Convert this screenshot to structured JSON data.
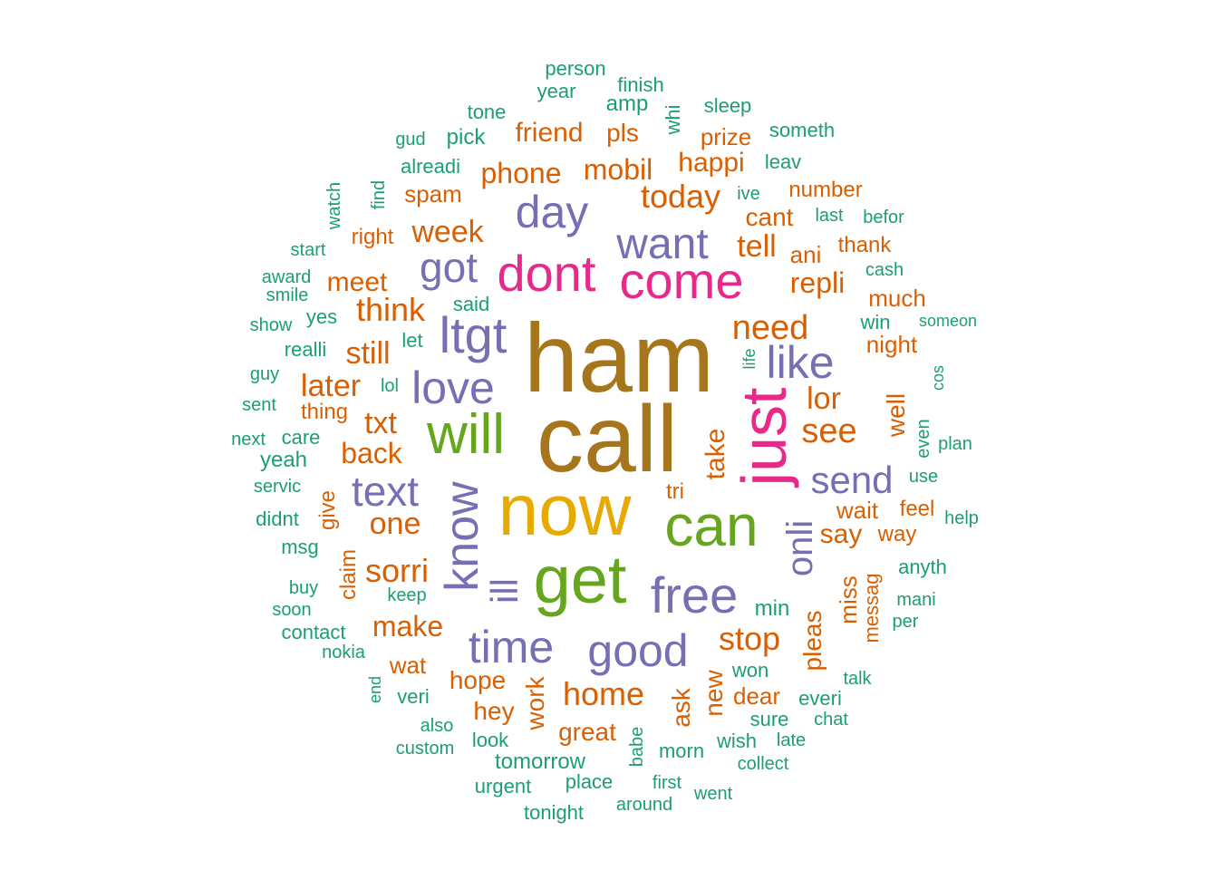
{
  "colors": {
    "teal": "#1b9e77",
    "orange": "#d95f02",
    "purple": "#7570b3",
    "pink": "#e7298a",
    "green": "#66a61e",
    "gold": "#e6ab02",
    "brown": "#a6761d"
  },
  "words": [
    {
      "text": "ham",
      "color": "brown"
    },
    {
      "text": "call",
      "color": "brown"
    },
    {
      "text": "now",
      "color": "gold"
    },
    {
      "text": "get",
      "color": "green"
    },
    {
      "text": "can",
      "color": "green"
    },
    {
      "text": "will",
      "color": "green"
    },
    {
      "text": "just",
      "color": "pink"
    },
    {
      "text": "dont",
      "color": "pink"
    },
    {
      "text": "come",
      "color": "pink"
    },
    {
      "text": "ltgt",
      "color": "purple"
    },
    {
      "text": "free",
      "color": "purple"
    },
    {
      "text": "know",
      "color": "purple"
    },
    {
      "text": "got",
      "color": "purple"
    },
    {
      "text": "day",
      "color": "purple"
    },
    {
      "text": "want",
      "color": "purple"
    },
    {
      "text": "like",
      "color": "purple"
    },
    {
      "text": "love",
      "color": "purple"
    },
    {
      "text": "time",
      "color": "purple"
    },
    {
      "text": "good",
      "color": "purple"
    },
    {
      "text": "text",
      "color": "purple"
    },
    {
      "text": "send",
      "color": "purple"
    },
    {
      "text": "ill",
      "color": "purple"
    },
    {
      "text": "onli",
      "color": "purple"
    },
    {
      "text": "need",
      "color": "orange"
    },
    {
      "text": "today",
      "color": "orange"
    },
    {
      "text": "think",
      "color": "orange"
    },
    {
      "text": "still",
      "color": "orange"
    },
    {
      "text": "later",
      "color": "orange"
    },
    {
      "text": "txt",
      "color": "orange"
    },
    {
      "text": "back",
      "color": "orange"
    },
    {
      "text": "one",
      "color": "orange"
    },
    {
      "text": "sorri",
      "color": "orange"
    },
    {
      "text": "make",
      "color": "orange"
    },
    {
      "text": "home",
      "color": "orange"
    },
    {
      "text": "stop",
      "color": "orange"
    },
    {
      "text": "take",
      "color": "orange"
    },
    {
      "text": "tell",
      "color": "orange"
    },
    {
      "text": "repli",
      "color": "orange"
    },
    {
      "text": "see",
      "color": "orange"
    },
    {
      "text": "lor",
      "color": "orange"
    },
    {
      "text": "week",
      "color": "orange"
    },
    {
      "text": "meet",
      "color": "orange"
    },
    {
      "text": "phone",
      "color": "orange"
    },
    {
      "text": "mobil",
      "color": "orange"
    },
    {
      "text": "happi",
      "color": "orange"
    },
    {
      "text": "friend",
      "color": "orange"
    },
    {
      "text": "pls",
      "color": "orange"
    },
    {
      "text": "prize",
      "color": "orange"
    },
    {
      "text": "spam",
      "color": "orange"
    },
    {
      "text": "number",
      "color": "orange"
    },
    {
      "text": "cant",
      "color": "orange"
    },
    {
      "text": "ani",
      "color": "orange"
    },
    {
      "text": "thank",
      "color": "orange"
    },
    {
      "text": "much",
      "color": "orange"
    },
    {
      "text": "night",
      "color": "orange"
    },
    {
      "text": "well",
      "color": "orange"
    },
    {
      "text": "say",
      "color": "orange"
    },
    {
      "text": "way",
      "color": "orange"
    },
    {
      "text": "wait",
      "color": "orange"
    },
    {
      "text": "feel",
      "color": "orange"
    },
    {
      "text": "miss",
      "color": "orange"
    },
    {
      "text": "messag",
      "color": "orange"
    },
    {
      "text": "pleas",
      "color": "orange"
    },
    {
      "text": "hope",
      "color": "orange"
    },
    {
      "text": "hey",
      "color": "orange"
    },
    {
      "text": "work",
      "color": "orange"
    },
    {
      "text": "great",
      "color": "orange"
    },
    {
      "text": "ask",
      "color": "orange"
    },
    {
      "text": "new",
      "color": "orange"
    },
    {
      "text": "dear",
      "color": "orange"
    },
    {
      "text": "wat",
      "color": "orange"
    },
    {
      "text": "claim",
      "color": "orange"
    },
    {
      "text": "give",
      "color": "orange"
    },
    {
      "text": "thing",
      "color": "orange"
    },
    {
      "text": "right",
      "color": "orange"
    },
    {
      "text": "tri",
      "color": "orange"
    },
    {
      "text": "person",
      "color": "teal"
    },
    {
      "text": "year",
      "color": "teal"
    },
    {
      "text": "finish",
      "color": "teal"
    },
    {
      "text": "amp",
      "color": "teal"
    },
    {
      "text": "whi",
      "color": "teal"
    },
    {
      "text": "sleep",
      "color": "teal"
    },
    {
      "text": "tone",
      "color": "teal"
    },
    {
      "text": "gud",
      "color": "teal"
    },
    {
      "text": "pick",
      "color": "teal"
    },
    {
      "text": "someth",
      "color": "teal"
    },
    {
      "text": "alreadi",
      "color": "teal"
    },
    {
      "text": "leav",
      "color": "teal"
    },
    {
      "text": "watch",
      "color": "teal"
    },
    {
      "text": "find",
      "color": "teal"
    },
    {
      "text": "ive",
      "color": "teal"
    },
    {
      "text": "last",
      "color": "teal"
    },
    {
      "text": "befor",
      "color": "teal"
    },
    {
      "text": "start",
      "color": "teal"
    },
    {
      "text": "award",
      "color": "teal"
    },
    {
      "text": "smile",
      "color": "teal"
    },
    {
      "text": "cash",
      "color": "teal"
    },
    {
      "text": "show",
      "color": "teal"
    },
    {
      "text": "yes",
      "color": "teal"
    },
    {
      "text": "said",
      "color": "teal"
    },
    {
      "text": "win",
      "color": "teal"
    },
    {
      "text": "someon",
      "color": "teal"
    },
    {
      "text": "realli",
      "color": "teal"
    },
    {
      "text": "let",
      "color": "teal"
    },
    {
      "text": "guy",
      "color": "teal"
    },
    {
      "text": "life",
      "color": "teal"
    },
    {
      "text": "cos",
      "color": "teal"
    },
    {
      "text": "sent",
      "color": "teal"
    },
    {
      "text": "lol",
      "color": "teal"
    },
    {
      "text": "next",
      "color": "teal"
    },
    {
      "text": "care",
      "color": "teal"
    },
    {
      "text": "even",
      "color": "teal"
    },
    {
      "text": "plan",
      "color": "teal"
    },
    {
      "text": "yeah",
      "color": "teal"
    },
    {
      "text": "servic",
      "color": "teal"
    },
    {
      "text": "use",
      "color": "teal"
    },
    {
      "text": "didnt",
      "color": "teal"
    },
    {
      "text": "help",
      "color": "teal"
    },
    {
      "text": "msg",
      "color": "teal"
    },
    {
      "text": "anyth",
      "color": "teal"
    },
    {
      "text": "buy",
      "color": "teal"
    },
    {
      "text": "keep",
      "color": "teal"
    },
    {
      "text": "soon",
      "color": "teal"
    },
    {
      "text": "min",
      "color": "teal"
    },
    {
      "text": "mani",
      "color": "teal"
    },
    {
      "text": "contact",
      "color": "teal"
    },
    {
      "text": "per",
      "color": "teal"
    },
    {
      "text": "nokia",
      "color": "teal"
    },
    {
      "text": "end",
      "color": "teal"
    },
    {
      "text": "won",
      "color": "teal"
    },
    {
      "text": "talk",
      "color": "teal"
    },
    {
      "text": "veri",
      "color": "teal"
    },
    {
      "text": "everi",
      "color": "teal"
    },
    {
      "text": "also",
      "color": "teal"
    },
    {
      "text": "babe",
      "color": "teal"
    },
    {
      "text": "sure",
      "color": "teal"
    },
    {
      "text": "chat",
      "color": "teal"
    },
    {
      "text": "look",
      "color": "teal"
    },
    {
      "text": "custom",
      "color": "teal"
    },
    {
      "text": "morn",
      "color": "teal"
    },
    {
      "text": "wish",
      "color": "teal"
    },
    {
      "text": "late",
      "color": "teal"
    },
    {
      "text": "tomorrow",
      "color": "teal"
    },
    {
      "text": "collect",
      "color": "teal"
    },
    {
      "text": "urgent",
      "color": "teal"
    },
    {
      "text": "place",
      "color": "teal"
    },
    {
      "text": "first",
      "color": "teal"
    },
    {
      "text": "went",
      "color": "teal"
    },
    {
      "text": "around",
      "color": "teal"
    },
    {
      "text": "tonight",
      "color": "teal"
    }
  ]
}
